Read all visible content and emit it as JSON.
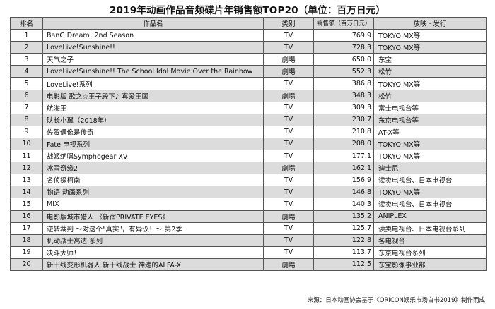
{
  "title": "2019年动画作品音频碟片年销售额TOP20（单位：百万日元）",
  "headers": {
    "rank": "排名",
    "work": "作品名",
    "category": "类别",
    "sales": "销售额（百万日元）",
    "distributor": "放映 · 发行"
  },
  "rows": [
    {
      "rank": "1",
      "work": "BanG Dream! 2nd Season",
      "category": "TV",
      "sales": "769.9",
      "distributor": "TOKYO MX等"
    },
    {
      "rank": "2",
      "work": "LoveLive!Sunshine!!",
      "category": "TV",
      "sales": "728.3",
      "distributor": "TOKYO MX等"
    },
    {
      "rank": "3",
      "work": "天气之子",
      "category": "劇場",
      "sales": "650.0",
      "distributor": "东宝"
    },
    {
      "rank": "4",
      "work": "LoveLive!Sunshine!! The School Idol Movie Over the Rainbow",
      "category": "劇場",
      "sales": "552.3",
      "distributor": "松竹"
    },
    {
      "rank": "5",
      "work": "LoveLive!系列",
      "category": "TV",
      "sales": "386.8",
      "distributor": "TOKYO MX等"
    },
    {
      "rank": "6",
      "work": "电影版 歌之☆王子殿下♪ 真爱王国",
      "category": "劇場",
      "sales": "348.3",
      "distributor": "松竹"
    },
    {
      "rank": "7",
      "work": "航海王",
      "category": "TV",
      "sales": "309.3",
      "distributor": "富士电视台等"
    },
    {
      "rank": "8",
      "work": "队长小翼（2018年）",
      "category": "TV",
      "sales": "230.7",
      "distributor": "东京电视台等"
    },
    {
      "rank": "9",
      "work": "佐贺偶像是传奇",
      "category": "TV",
      "sales": "210.8",
      "distributor": "AT-X等"
    },
    {
      "rank": "10",
      "work": "Fate 电视系列",
      "category": "TV",
      "sales": "208.0",
      "distributor": "TOKYO MX等"
    },
    {
      "rank": "11",
      "work": "战姬绝唱Symphogear XV",
      "category": "TV",
      "sales": "177.1",
      "distributor": "TOKYO MX等"
    },
    {
      "rank": "12",
      "work": "冰雪奇缘2",
      "category": "劇場",
      "sales": "162.1",
      "distributor": "迪士尼"
    },
    {
      "rank": "13",
      "work": "名侦探柯南",
      "category": "TV",
      "sales": "156.9",
      "distributor": "读卖电视台、日本电视台"
    },
    {
      "rank": "14",
      "work": "物语 动画系列",
      "category": "TV",
      "sales": "146.8",
      "distributor": "TOKYO MX等"
    },
    {
      "rank": "15",
      "work": "MIX",
      "category": "TV",
      "sales": "140.3",
      "distributor": "读卖电视台、日本电视台"
    },
    {
      "rank": "16",
      "work": "电影版城市猎人 《新宿PRIVATE EYES》",
      "category": "劇場",
      "sales": "135.2",
      "distributor": "ANIPLEX"
    },
    {
      "rank": "17",
      "work": "逆转裁判 ～对这个\"真实\"，有异议！～ 第2季",
      "category": "TV",
      "sales": "125.7",
      "distributor": "读卖电视台、日本电视台系列"
    },
    {
      "rank": "18",
      "work": "机动战士高达 系列",
      "category": "TV",
      "sales": "122.8",
      "distributor": "各电视台"
    },
    {
      "rank": "19",
      "work": "决斗大师！",
      "category": "TV",
      "sales": "113.7",
      "distributor": "东京电视台系列"
    },
    {
      "rank": "20",
      "work": "新干线变形机器人 新干线战士 神速的ALFA-X",
      "category": "劇場",
      "sales": "112.5",
      "distributor": "东宝影像事业部"
    }
  ],
  "source": "来源：日本动画协会基于《ORICON娱乐市场白书2019》制作而成"
}
